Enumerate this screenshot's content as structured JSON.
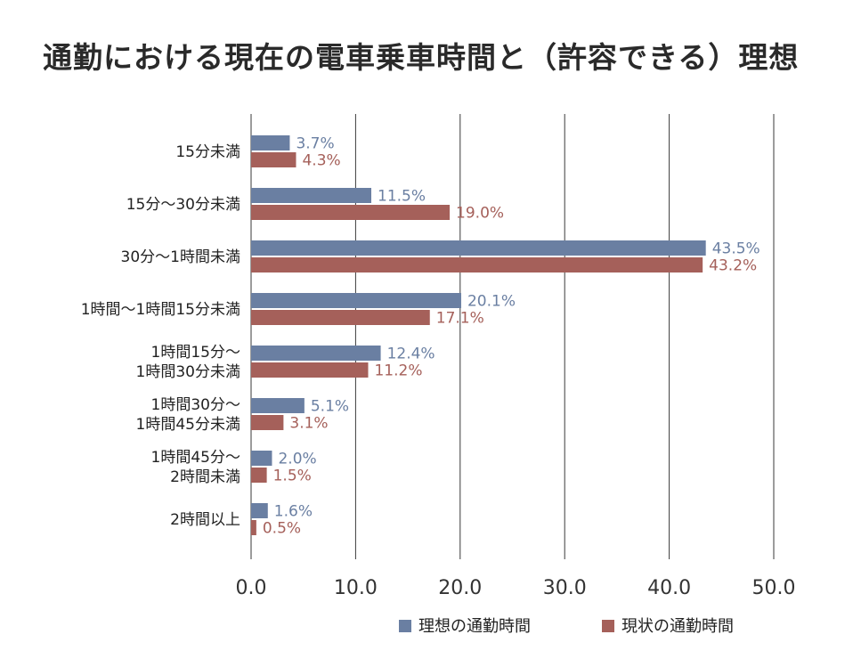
{
  "chart_data": {
    "type": "bar",
    "orientation": "horizontal",
    "title": "通勤における現在の電車乗車時間と（許容できる）理想",
    "categories": [
      [
        "15分未満"
      ],
      [
        "15分〜30分未満"
      ],
      [
        "30分〜1時間未満"
      ],
      [
        "1時間〜1時間15分未満"
      ],
      [
        "1時間15分〜",
        "1時間30分未満"
      ],
      [
        "1時間30分〜",
        "1時間45分未満"
      ],
      [
        "1時間45分〜",
        "2時間未満"
      ],
      [
        "2時間以上"
      ]
    ],
    "series": [
      {
        "name": "理想の通勤時間",
        "color": "#6a7fa2",
        "values": [
          3.7,
          11.5,
          43.5,
          20.1,
          12.4,
          5.1,
          2.0,
          1.6
        ],
        "labels": [
          "3.7%",
          "11.5%",
          "43.5%",
          "20.1%",
          "12.4%",
          "5.1%",
          "2.0%",
          "1.6%"
        ]
      },
      {
        "name": "現状の通勤時間",
        "color": "#a5605a",
        "values": [
          4.3,
          19.0,
          43.2,
          17.1,
          11.2,
          3.1,
          1.5,
          0.5
        ],
        "labels": [
          "4.3%",
          "19.0%",
          "43.2%",
          "17.1%",
          "11.2%",
          "3.1%",
          "1.5%",
          "0.5%"
        ]
      }
    ],
    "xlim": [
      0,
      50
    ],
    "xticks": [
      "0.0",
      "10.0",
      "20.0",
      "30.0",
      "40.0",
      "50.0"
    ],
    "grid": true,
    "legend_position": "bottom"
  }
}
